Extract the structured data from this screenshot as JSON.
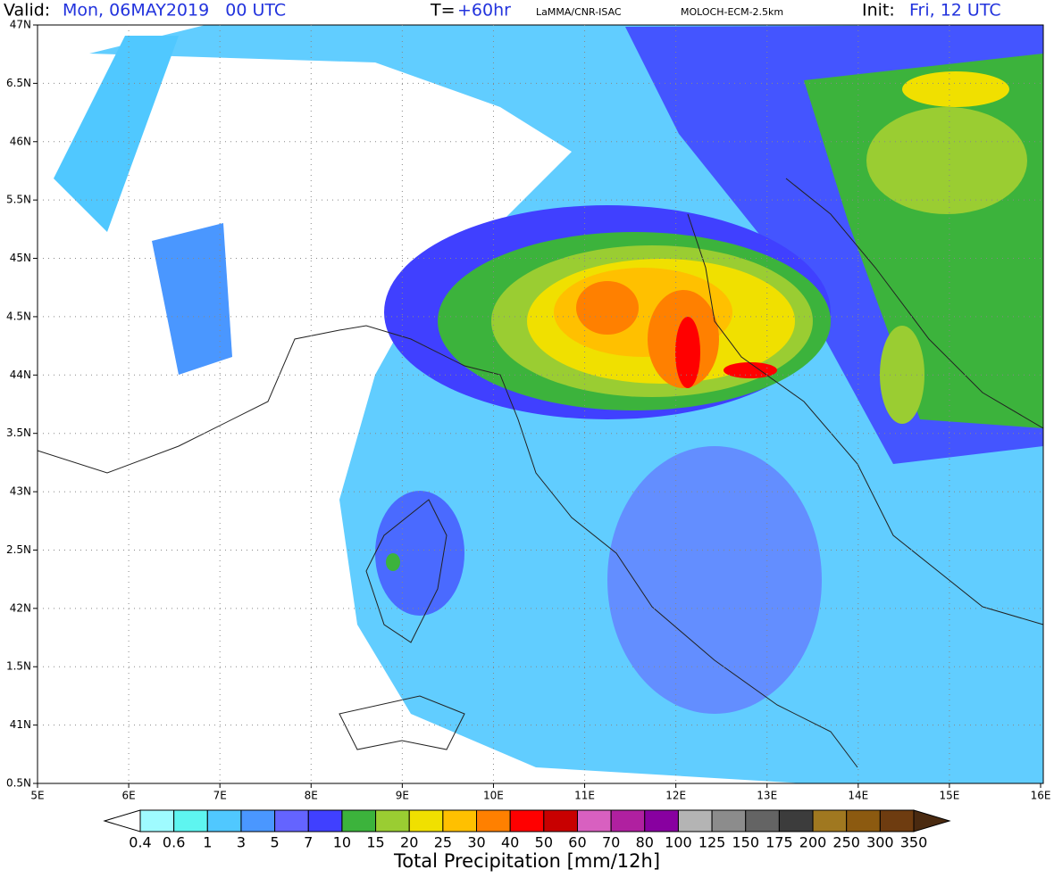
{
  "header": {
    "valid_label": "Valid:",
    "valid_value": "Mon, 06MAY2019   00 UTC",
    "t_label": "T=",
    "t_value": "+60hr",
    "source": "LaMMA/CNR-ISAC",
    "model": "MOLOCH-ECM-2.5km",
    "init_label": "Init:",
    "init_value": "Fri, 12 UTC"
  },
  "map": {
    "lat_labels": [
      "47N",
      "6.5N",
      "46N",
      "5.5N",
      "45N",
      "4.5N",
      "44N",
      "3.5N",
      "43N",
      "2.5N",
      "42N",
      "1.5N",
      "41N",
      "0.5N"
    ],
    "lon_labels": [
      "5E",
      "6E",
      "7E",
      "8E",
      "9E",
      "10E",
      "11E",
      "12E",
      "13E",
      "14E",
      "15E",
      "16E"
    ]
  },
  "colorbar": {
    "title": "Total Precipitation [mm/12h]",
    "labels": [
      "0.4",
      "0.6",
      "1",
      "3",
      "5",
      "7",
      "10",
      "15",
      "20",
      "25",
      "30",
      "40",
      "50",
      "60",
      "70",
      "80",
      "100",
      "125",
      "150",
      "175",
      "200",
      "250",
      "300",
      "350"
    ],
    "colors": [
      "#9ffbff",
      "#5ef5f0",
      "#50c8ff",
      "#4a97ff",
      "#6464ff",
      "#4040ff",
      "#3cb33c",
      "#9acd32",
      "#f0e000",
      "#ffc000",
      "#ff8000",
      "#ff0000",
      "#c80000",
      "#d860c0",
      "#b020a0",
      "#8800a0",
      "#b4b4b4",
      "#8c8c8c",
      "#646464",
      "#3c3c3c",
      "#a07820",
      "#8c5a10",
      "#6e3c10"
    ],
    "under_color": "#ffffff",
    "over_color": "#4a2a10"
  }
}
